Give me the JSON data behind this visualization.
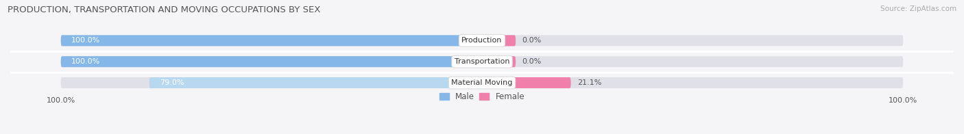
{
  "title": "PRODUCTION, TRANSPORTATION AND MOVING OCCUPATIONS BY SEX",
  "source": "Source: ZipAtlas.com",
  "categories": [
    "Production",
    "Transportation",
    "Material Moving"
  ],
  "male_values": [
    100.0,
    100.0,
    79.0
  ],
  "female_values": [
    0.0,
    0.0,
    21.1
  ],
  "male_color": "#85b8e8",
  "female_color": "#f07faa",
  "male_light_color": "#b8d8f0",
  "bar_bg_color": "#e0e0e8",
  "title_color": "#555555",
  "source_color": "#aaaaaa",
  "axis_label_color": "#555555",
  "male_text_color": "#ffffff",
  "female_text_color": "#555555",
  "legend_male_color": "#85b8e8",
  "legend_female_color": "#f07faa",
  "figsize": [
    14.06,
    1.96
  ],
  "dpi": 100,
  "female_min_display": 8.0
}
